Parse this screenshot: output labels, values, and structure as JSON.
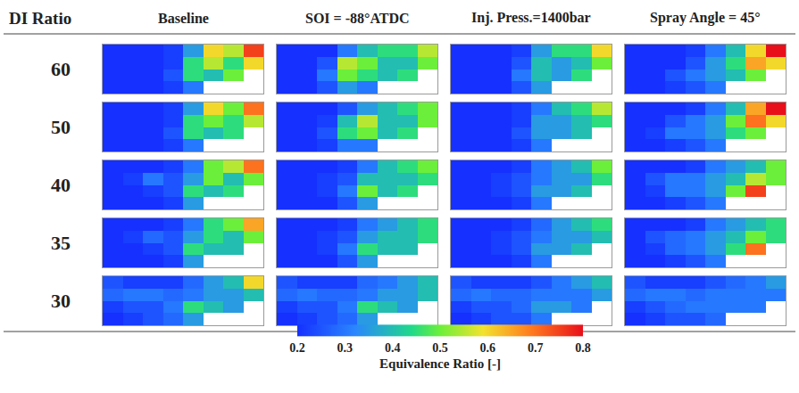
{
  "chart_data": {
    "type": "heatmap",
    "corner_label": "DI Ratio",
    "columns": [
      "Baseline",
      "SOI = -88°ATDC",
      "Inj. Press.=1400bar",
      "Spray Angle = 45°"
    ],
    "rows": [
      60,
      50,
      40,
      35,
      30
    ],
    "tick_labels": false,
    "colorbar": {
      "title": "Equivalence Ratio [-]",
      "range": [
        0.2,
        0.8
      ],
      "ticks": [
        0.2,
        0.3,
        0.4,
        0.5,
        0.6,
        0.7,
        0.8
      ]
    },
    "panels": [
      [
        [
          [
            0.2,
            0.2,
            0.2,
            0.22,
            0.35,
            0.6,
            0.55,
            0.75
          ],
          [
            0.2,
            0.2,
            0.2,
            0.22,
            0.45,
            0.55,
            0.45,
            0.6
          ],
          [
            0.2,
            0.2,
            0.2,
            0.25,
            0.45,
            0.4,
            0.5,
            null
          ],
          [
            0.2,
            0.2,
            0.2,
            0.22,
            0.3,
            null,
            null,
            null
          ]
        ],
        [
          [
            0.2,
            0.2,
            0.2,
            0.3,
            0.4,
            0.45,
            0.45,
            0.55
          ],
          [
            0.2,
            0.2,
            0.25,
            0.55,
            0.5,
            0.4,
            0.4,
            0.5
          ],
          [
            0.2,
            0.2,
            0.3,
            0.5,
            0.45,
            0.4,
            0.45,
            null
          ],
          [
            0.2,
            0.2,
            0.25,
            0.35,
            0.3,
            null,
            null,
            null
          ]
        ],
        [
          [
            0.2,
            0.2,
            0.2,
            0.22,
            0.35,
            0.45,
            0.45,
            0.6
          ],
          [
            0.2,
            0.2,
            0.2,
            0.25,
            0.4,
            0.35,
            0.4,
            0.5
          ],
          [
            0.2,
            0.2,
            0.2,
            0.3,
            0.4,
            0.35,
            0.45,
            null
          ],
          [
            0.2,
            0.2,
            0.2,
            0.25,
            0.35,
            null,
            null,
            null
          ]
        ],
        [
          [
            0.2,
            0.2,
            0.2,
            0.22,
            0.3,
            0.4,
            0.6,
            0.8
          ],
          [
            0.2,
            0.2,
            0.2,
            0.25,
            0.35,
            0.45,
            0.65,
            0.6
          ],
          [
            0.2,
            0.2,
            0.25,
            0.3,
            0.35,
            0.4,
            0.5,
            null
          ],
          [
            0.2,
            0.2,
            0.22,
            0.25,
            0.3,
            null,
            null,
            null
          ]
        ]
      ],
      [
        [
          [
            0.2,
            0.2,
            0.2,
            0.22,
            0.35,
            0.6,
            0.5,
            0.7
          ],
          [
            0.2,
            0.2,
            0.2,
            0.22,
            0.45,
            0.5,
            0.45,
            0.55
          ],
          [
            0.2,
            0.2,
            0.2,
            0.25,
            0.45,
            0.4,
            0.45,
            null
          ],
          [
            0.2,
            0.2,
            0.2,
            0.22,
            0.3,
            null,
            null,
            null
          ]
        ],
        [
          [
            0.2,
            0.2,
            0.2,
            0.25,
            0.35,
            0.4,
            0.45,
            0.5
          ],
          [
            0.2,
            0.2,
            0.22,
            0.4,
            0.55,
            0.4,
            0.4,
            0.5
          ],
          [
            0.2,
            0.2,
            0.25,
            0.45,
            0.5,
            0.4,
            0.45,
            null
          ],
          [
            0.2,
            0.2,
            0.22,
            0.3,
            0.3,
            null,
            null,
            null
          ]
        ],
        [
          [
            0.2,
            0.2,
            0.2,
            0.22,
            0.3,
            0.4,
            0.45,
            0.55
          ],
          [
            0.2,
            0.2,
            0.2,
            0.22,
            0.35,
            0.35,
            0.4,
            0.45
          ],
          [
            0.2,
            0.2,
            0.2,
            0.25,
            0.35,
            0.35,
            0.4,
            null
          ],
          [
            0.2,
            0.2,
            0.2,
            0.22,
            0.3,
            null,
            null,
            null
          ]
        ],
        [
          [
            0.2,
            0.2,
            0.2,
            0.22,
            0.3,
            0.4,
            0.65,
            0.8
          ],
          [
            0.2,
            0.2,
            0.25,
            0.3,
            0.35,
            0.5,
            0.7,
            0.6
          ],
          [
            0.2,
            0.22,
            0.3,
            0.3,
            0.35,
            0.45,
            0.5,
            null
          ],
          [
            0.2,
            0.2,
            0.22,
            0.25,
            0.3,
            null,
            null,
            null
          ]
        ]
      ],
      [
        [
          [
            0.2,
            0.2,
            0.2,
            0.22,
            0.3,
            0.5,
            0.55,
            0.7
          ],
          [
            0.2,
            0.22,
            0.3,
            0.25,
            0.35,
            0.5,
            0.4,
            0.5
          ],
          [
            0.2,
            0.2,
            0.22,
            0.25,
            0.45,
            0.4,
            0.45,
            null
          ],
          [
            0.2,
            0.2,
            0.2,
            0.22,
            0.35,
            null,
            null,
            null
          ]
        ],
        [
          [
            0.2,
            0.2,
            0.2,
            0.22,
            0.3,
            0.4,
            0.45,
            0.5
          ],
          [
            0.2,
            0.2,
            0.22,
            0.25,
            0.4,
            0.4,
            0.4,
            0.45
          ],
          [
            0.2,
            0.2,
            0.22,
            0.3,
            0.5,
            0.4,
            0.45,
            null
          ],
          [
            0.2,
            0.2,
            0.2,
            0.25,
            0.35,
            null,
            null,
            null
          ]
        ],
        [
          [
            0.2,
            0.2,
            0.2,
            0.22,
            0.3,
            0.35,
            0.4,
            0.5
          ],
          [
            0.2,
            0.2,
            0.22,
            0.25,
            0.3,
            0.35,
            0.35,
            0.45
          ],
          [
            0.2,
            0.2,
            0.22,
            0.25,
            0.35,
            0.35,
            0.4,
            null
          ],
          [
            0.2,
            0.2,
            0.2,
            0.22,
            0.3,
            null,
            null,
            null
          ]
        ],
        [
          [
            0.2,
            0.2,
            0.2,
            0.22,
            0.3,
            0.35,
            0.4,
            0.5
          ],
          [
            0.2,
            0.25,
            0.3,
            0.3,
            0.35,
            0.4,
            0.55,
            0.5
          ],
          [
            0.2,
            0.22,
            0.3,
            0.3,
            0.35,
            0.5,
            0.75,
            null
          ],
          [
            0.2,
            0.2,
            0.22,
            0.25,
            0.3,
            null,
            null,
            null
          ]
        ]
      ],
      [
        [
          [
            0.2,
            0.2,
            0.2,
            0.22,
            0.3,
            0.45,
            0.5,
            0.65
          ],
          [
            0.2,
            0.22,
            0.28,
            0.25,
            0.35,
            0.45,
            0.4,
            0.5
          ],
          [
            0.2,
            0.2,
            0.22,
            0.25,
            0.45,
            0.4,
            0.4,
            null
          ],
          [
            0.2,
            0.2,
            0.2,
            0.22,
            0.35,
            null,
            null,
            null
          ]
        ],
        [
          [
            0.2,
            0.2,
            0.2,
            0.22,
            0.3,
            0.35,
            0.4,
            0.45
          ],
          [
            0.2,
            0.2,
            0.22,
            0.25,
            0.35,
            0.4,
            0.4,
            0.45
          ],
          [
            0.2,
            0.2,
            0.22,
            0.3,
            0.45,
            0.4,
            0.4,
            null
          ],
          [
            0.2,
            0.2,
            0.2,
            0.25,
            0.35,
            null,
            null,
            null
          ]
        ],
        [
          [
            0.2,
            0.2,
            0.2,
            0.22,
            0.28,
            0.35,
            0.4,
            0.45
          ],
          [
            0.2,
            0.2,
            0.22,
            0.25,
            0.3,
            0.35,
            0.35,
            0.4
          ],
          [
            0.2,
            0.2,
            0.22,
            0.25,
            0.35,
            0.35,
            0.4,
            null
          ],
          [
            0.2,
            0.2,
            0.2,
            0.22,
            0.3,
            null,
            null,
            null
          ]
        ],
        [
          [
            0.2,
            0.2,
            0.2,
            0.22,
            0.3,
            0.35,
            0.4,
            0.45
          ],
          [
            0.2,
            0.25,
            0.28,
            0.3,
            0.35,
            0.4,
            0.5,
            0.45
          ],
          [
            0.2,
            0.22,
            0.28,
            0.3,
            0.35,
            0.45,
            0.7,
            null
          ],
          [
            0.2,
            0.2,
            0.22,
            0.25,
            0.3,
            null,
            null,
            null
          ]
        ]
      ],
      [
        [
          [
            0.25,
            0.22,
            0.22,
            0.22,
            0.28,
            0.35,
            0.4,
            0.6
          ],
          [
            0.28,
            0.3,
            0.3,
            0.28,
            0.3,
            0.35,
            0.35,
            0.4
          ],
          [
            0.22,
            0.25,
            0.25,
            0.3,
            0.45,
            0.4,
            0.35,
            null
          ],
          [
            0.2,
            0.22,
            0.25,
            0.28,
            0.35,
            null,
            null,
            null
          ]
        ],
        [
          [
            0.25,
            0.22,
            0.22,
            0.22,
            0.28,
            0.3,
            0.35,
            0.4
          ],
          [
            0.28,
            0.3,
            0.28,
            0.28,
            0.3,
            0.35,
            0.35,
            0.4
          ],
          [
            0.22,
            0.25,
            0.25,
            0.3,
            0.45,
            0.4,
            0.35,
            null
          ],
          [
            0.2,
            0.22,
            0.25,
            0.28,
            0.35,
            null,
            null,
            null
          ]
        ],
        [
          [
            0.25,
            0.22,
            0.22,
            0.22,
            0.25,
            0.3,
            0.35,
            0.4
          ],
          [
            0.28,
            0.3,
            0.28,
            0.28,
            0.3,
            0.3,
            0.3,
            0.35
          ],
          [
            0.22,
            0.25,
            0.25,
            0.28,
            0.35,
            0.35,
            0.3,
            null
          ],
          [
            0.2,
            0.22,
            0.25,
            0.25,
            0.3,
            null,
            null,
            null
          ]
        ],
        [
          [
            0.25,
            0.22,
            0.22,
            0.22,
            0.25,
            0.28,
            0.3,
            0.35
          ],
          [
            0.28,
            0.3,
            0.3,
            0.28,
            0.3,
            0.3,
            0.3,
            0.3
          ],
          [
            0.22,
            0.25,
            0.28,
            0.3,
            0.3,
            0.3,
            0.3,
            null
          ],
          [
            0.2,
            0.22,
            0.25,
            0.25,
            0.28,
            null,
            null,
            null
          ]
        ]
      ]
    ]
  }
}
